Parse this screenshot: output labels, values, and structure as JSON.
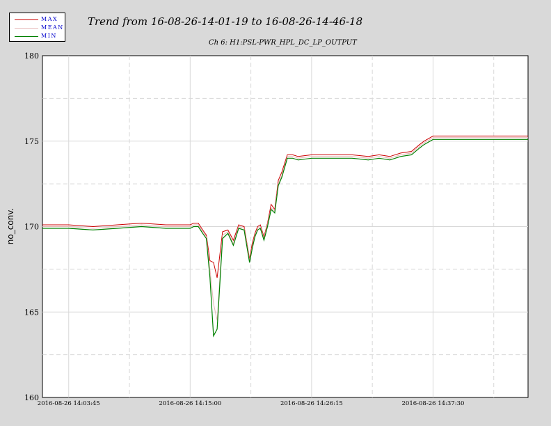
{
  "legend": {
    "items": [
      {
        "label": "MAX",
        "color": "#cc0000"
      },
      {
        "label": "MEAN",
        "color": "#e6b8b8"
      },
      {
        "label": "MIN",
        "color": "#008000"
      }
    ]
  },
  "chart_data": {
    "type": "line",
    "title": "Trend from 16-08-26-14-01-19 to 16-08-26-14-46-18",
    "subtitle": "Ch 6: H1:PSL-PWR_HPL_DC_LP_OUTPUT",
    "ylabel": "no_conv.",
    "xlabel": "",
    "ylim": [
      160,
      180
    ],
    "yticks": [
      160,
      165,
      170,
      175,
      180
    ],
    "xlim": [
      "2016-08-26 14:01:19",
      "2016-08-26 14:46:18"
    ],
    "xticks": [
      "2016-08-26 14:03:45",
      "2016-08-26 14:15:00",
      "2016-08-26 14:26:15",
      "2016-08-26 14:37:30"
    ],
    "grid": true,
    "legend_position": "top-left",
    "x": [
      "14:01:19",
      "14:03:45",
      "14:06:00",
      "14:08:15",
      "14:10:30",
      "14:12:45",
      "14:15:00",
      "14:15:20",
      "14:15:45",
      "14:16:10",
      "14:16:30",
      "14:16:50",
      "14:17:10",
      "14:17:30",
      "14:18:00",
      "14:18:30",
      "14:19:00",
      "14:19:30",
      "14:20:00",
      "14:20:30",
      "14:20:45",
      "14:21:00",
      "14:21:15",
      "14:21:30",
      "14:21:50",
      "14:22:10",
      "14:22:30",
      "14:22:50",
      "14:23:10",
      "14:23:30",
      "14:24:00",
      "14:24:30",
      "14:25:00",
      "14:26:15",
      "14:28:00",
      "14:30:00",
      "14:31:30",
      "14:32:30",
      "14:33:30",
      "14:34:30",
      "14:35:30",
      "14:36:15",
      "14:36:40",
      "14:37:30",
      "14:38:30",
      "14:39:30",
      "14:40:30",
      "14:42:00",
      "14:43:30",
      "14:45:00",
      "14:46:18"
    ],
    "series": [
      {
        "name": "MAX",
        "values": [
          170.1,
          170.1,
          170.0,
          170.1,
          170.2,
          170.1,
          170.1,
          170.2,
          170.2,
          169.8,
          169.5,
          168.0,
          167.9,
          167.0,
          169.7,
          169.8,
          169.2,
          170.1,
          170.0,
          168.1,
          169.0,
          169.6,
          170.0,
          170.1,
          169.4,
          170.2,
          171.3,
          171.0,
          172.7,
          173.2,
          174.2,
          174.2,
          174.1,
          174.2,
          174.2,
          174.2,
          174.1,
          174.2,
          174.1,
          174.3,
          174.4,
          174.8,
          175.0,
          175.3,
          175.3,
          175.3,
          175.3,
          175.3,
          175.3,
          175.3,
          175.3
        ]
      },
      {
        "name": "MEAN",
        "values": [
          170.0,
          170.0,
          169.9,
          170.0,
          170.1,
          170.0,
          170.0,
          170.1,
          170.1,
          169.7,
          169.4,
          167.5,
          165.5,
          164.5,
          169.5,
          169.7,
          169.0,
          170.0,
          169.9,
          168.0,
          168.8,
          169.5,
          169.9,
          170.0,
          169.3,
          170.1,
          171.1,
          170.9,
          172.5,
          173.0,
          174.1,
          174.1,
          174.0,
          174.1,
          174.1,
          174.1,
          174.0,
          174.1,
          174.0,
          174.2,
          174.3,
          174.7,
          174.9,
          175.2,
          175.2,
          175.2,
          175.2,
          175.2,
          175.2,
          175.2,
          175.2
        ]
      },
      {
        "name": "MIN",
        "values": [
          169.9,
          169.9,
          169.8,
          169.9,
          170.0,
          169.9,
          169.9,
          170.0,
          170.0,
          169.6,
          169.3,
          167.0,
          163.6,
          164.0,
          169.3,
          169.6,
          168.9,
          169.9,
          169.8,
          167.9,
          168.7,
          169.4,
          169.8,
          169.9,
          169.2,
          170.0,
          171.0,
          170.8,
          172.4,
          172.9,
          174.0,
          174.0,
          173.9,
          174.0,
          174.0,
          174.0,
          173.9,
          174.0,
          173.9,
          174.1,
          174.2,
          174.6,
          174.8,
          175.1,
          175.1,
          175.1,
          175.1,
          175.1,
          175.1,
          175.1,
          175.1
        ]
      }
    ]
  }
}
